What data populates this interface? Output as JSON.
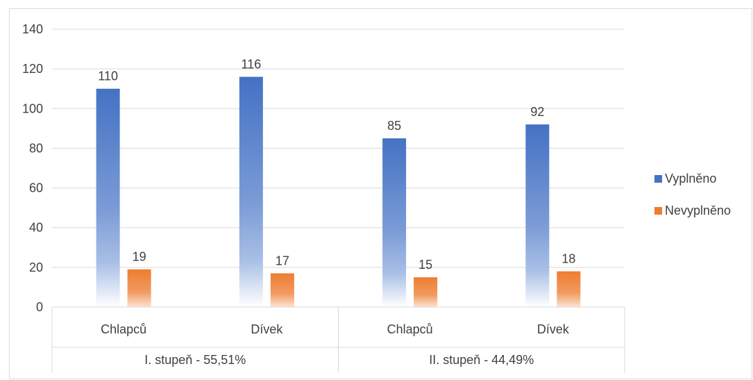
{
  "chart_data": {
    "type": "bar",
    "categories": [
      {
        "label": "Chlapců",
        "group": "I. stupeň - 55,51%"
      },
      {
        "label": "Dívek",
        "group": "I. stupeň - 55,51%"
      },
      {
        "label": "Chlapců",
        "group": "II. stupeň - 44,49%"
      },
      {
        "label": "Dívek",
        "group": "II. stupeň - 44,49%"
      }
    ],
    "groups": [
      "I. stupeň - 55,51%",
      "II. stupeň - 44,49%"
    ],
    "series": [
      {
        "name": "Vyplněno",
        "color": "#4472c4",
        "values": [
          110,
          116,
          85,
          92
        ]
      },
      {
        "name": "Nevyplněno",
        "color": "#ed7d31",
        "values": [
          19,
          17,
          15,
          18
        ]
      }
    ],
    "ylim": [
      0,
      140
    ],
    "yticks": [
      "0",
      "20",
      "40",
      "60",
      "80",
      "100",
      "120",
      "140"
    ],
    "grid": true,
    "legend": "right",
    "data_labels": true
  }
}
